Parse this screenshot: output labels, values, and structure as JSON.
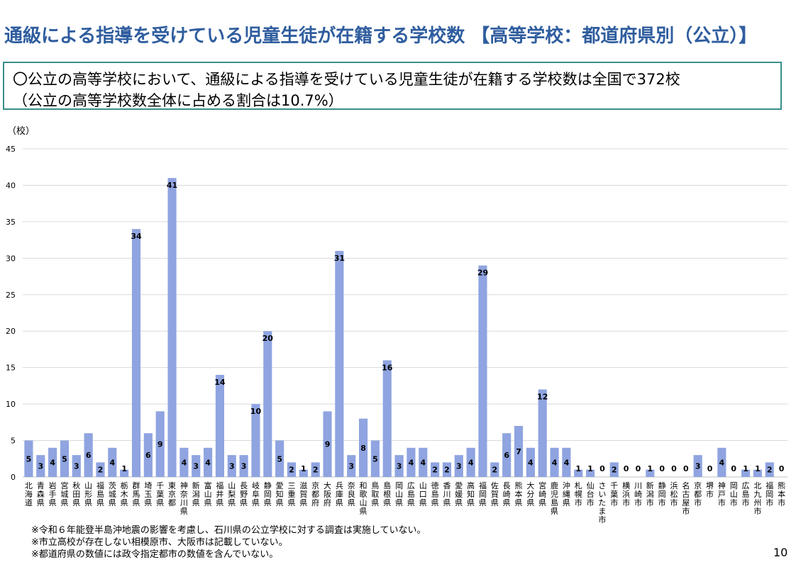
{
  "title": "通級による指導を受けている児童生徒が在籍する学校数 【高等学校：都道府県別（公立）】",
  "summary": {
    "line1": "〇公立の高等学校において、通級による指導を受けている児童生徒が在籍する学校数は全国で372校",
    "line2": "（公立の高等学校数全体に占める割合は10.7%）"
  },
  "notes": [
    "※令和６年能登半島沖地震の影響を考慮し、石川県の公立学校に対する調査は実施していない。",
    "※市立高校が存在しない相模原市、大阪市は記載していない。",
    "※都道府県の数値には政令指定都市の数値を含んでいない。"
  ],
  "page_number": "10",
  "colors": {
    "bar": "#8fa4e0",
    "title": "#2f5d9e",
    "border": "#3a8f8a",
    "grid": "#d9d9d9"
  },
  "chart_data": {
    "type": "bar",
    "ylabel": "（校）",
    "ylim": [
      0,
      45
    ],
    "yticks": [
      0,
      5,
      10,
      15,
      20,
      25,
      30,
      35,
      40,
      45
    ],
    "grid": true,
    "categories": [
      "北海道",
      "青森県",
      "岩手県",
      "宮城県",
      "秋田県",
      "山形県",
      "福島県",
      "茨城県",
      "栃木県",
      "群馬県",
      "埼玉県",
      "千葉県",
      "東京都",
      "神奈川県",
      "新潟県",
      "富山県",
      "福井県",
      "山梨県",
      "長野県",
      "岐阜県",
      "静岡県",
      "愛知県",
      "三重県",
      "滋賀県",
      "京都府",
      "大阪府",
      "兵庫県",
      "奈良県",
      "和歌山県",
      "鳥取県",
      "島根県",
      "岡山県",
      "広島県",
      "山口県",
      "徳島県",
      "香川県",
      "愛媛県",
      "高知県",
      "福岡県",
      "佐賀県",
      "長崎県",
      "熊本県",
      "大分県",
      "宮崎県",
      "鹿児島県",
      "沖縄県",
      "札幌市",
      "仙台市",
      "さいたま市",
      "千葉市",
      "横浜市",
      "川崎市",
      "新潟市",
      "静岡市",
      "浜松市",
      "名古屋市",
      "京都市",
      "堺市",
      "神戸市",
      "岡山市",
      "広島市",
      "北九州市",
      "福岡市",
      "熊本市"
    ],
    "values": [
      5,
      3,
      4,
      5,
      3,
      6,
      2,
      4,
      1,
      34,
      6,
      9,
      41,
      4,
      3,
      4,
      14,
      3,
      3,
      10,
      20,
      5,
      2,
      1,
      2,
      9,
      31,
      3,
      8,
      5,
      16,
      3,
      4,
      4,
      2,
      2,
      3,
      4,
      29,
      2,
      6,
      7,
      4,
      12,
      4,
      4,
      1,
      1,
      0,
      2,
      0,
      0,
      1,
      0,
      0,
      0,
      3,
      0,
      4,
      0,
      1,
      1,
      2,
      0
    ]
  }
}
